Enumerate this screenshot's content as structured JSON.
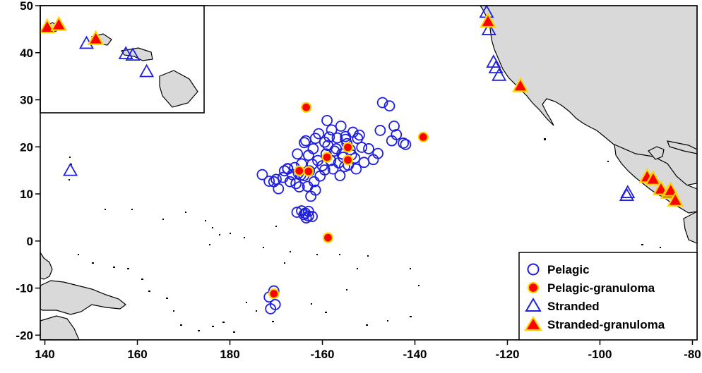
{
  "chart_data": {
    "type": "scatter",
    "x_axis": {
      "min": 139,
      "max": 281,
      "ticks": [
        140,
        160,
        180,
        200,
        220,
        240,
        260,
        280
      ],
      "tick_labels": [
        "140",
        "160",
        "180",
        "-160",
        "-140",
        "-120",
        "-100",
        "-80"
      ]
    },
    "y_axis": {
      "min": -21,
      "max": 50,
      "ticks": [
        50,
        40,
        30,
        20,
        10,
        0,
        -10,
        -20
      ],
      "tick_labels": [
        "50",
        "40",
        "30",
        "20",
        "10",
        "0",
        "-10",
        "-20"
      ]
    },
    "grid": false,
    "inset": "Hawaiian Islands, top-left",
    "legend_position": "bottom-right",
    "colors": {
      "land": "#d9d9d9",
      "open": "#1f1fe0",
      "filled": "#ff0000",
      "edge": "#ffd700"
    },
    "series": [
      {
        "name": "Pelagic",
        "marker": "open-circle",
        "points": [
          [
            187.0,
            14.1
          ],
          [
            188.5,
            12.7
          ],
          [
            189.5,
            12.6
          ],
          [
            190.0,
            13.1
          ],
          [
            190.5,
            11.1
          ],
          [
            191.5,
            13.5
          ],
          [
            191.8,
            14.9
          ],
          [
            192.5,
            15.3
          ],
          [
            193.0,
            12.6
          ],
          [
            193.5,
            14.1
          ],
          [
            194.0,
            15.6
          ],
          [
            194.3,
            12.2
          ],
          [
            194.6,
            18.5
          ],
          [
            194.8,
            14.4
          ],
          [
            195.0,
            11.5
          ],
          [
            195.5,
            16.4
          ],
          [
            196.0,
            13.9
          ],
          [
            196.1,
            20.9
          ],
          [
            196.4,
            21.3
          ],
          [
            196.8,
            11.6
          ],
          [
            197.0,
            18.2
          ],
          [
            197.2,
            14.9
          ],
          [
            197.8,
            16.3
          ],
          [
            198.0,
            19.6
          ],
          [
            198.2,
            12.6
          ],
          [
            198.5,
            21.8
          ],
          [
            199.0,
            17.1
          ],
          [
            199.2,
            22.8
          ],
          [
            199.5,
            13.8
          ],
          [
            200.0,
            16.0
          ],
          [
            200.5,
            15.1
          ],
          [
            200.8,
            18.5
          ],
          [
            201.0,
            25.6
          ],
          [
            201.2,
            20.3
          ],
          [
            201.5,
            22.1
          ],
          [
            201.8,
            17.1
          ],
          [
            202.0,
            23.6
          ],
          [
            202.3,
            15.3
          ],
          [
            202.6,
            19.1
          ],
          [
            203.0,
            19.6
          ],
          [
            203.2,
            21.9
          ],
          [
            203.5,
            16.6
          ],
          [
            203.8,
            13.9
          ],
          [
            204.0,
            24.4
          ],
          [
            204.2,
            18.5
          ],
          [
            204.5,
            17.8
          ],
          [
            204.8,
            15.8
          ],
          [
            205.0,
            22.2
          ],
          [
            205.3,
            20.7
          ],
          [
            205.6,
            16.1
          ],
          [
            206.0,
            19.4
          ],
          [
            206.3,
            18.3
          ],
          [
            206.6,
            23.1
          ],
          [
            207.0,
            17.6
          ],
          [
            207.3,
            15.3
          ],
          [
            207.6,
            21.8
          ],
          [
            208.0,
            22.5
          ],
          [
            208.5,
            19.9
          ],
          [
            209.0,
            16.7
          ],
          [
            210.0,
            19.6
          ],
          [
            211.0,
            17.3
          ],
          [
            212.0,
            18.6
          ],
          [
            212.5,
            23.5
          ],
          [
            213.0,
            29.4
          ],
          [
            214.5,
            28.7
          ],
          [
            215.0,
            21.3
          ],
          [
            215.5,
            24.4
          ],
          [
            216.0,
            22.6
          ],
          [
            217.5,
            20.8
          ],
          [
            218.0,
            20.5
          ],
          [
            194.5,
            6.1
          ],
          [
            195.5,
            6.4
          ],
          [
            196.0,
            5.6
          ],
          [
            196.5,
            4.9
          ],
          [
            197.0,
            6.3
          ],
          [
            197.5,
            9.5
          ],
          [
            197.0,
            5.3
          ],
          [
            196.3,
            5.9
          ],
          [
            197.8,
            5.2
          ],
          [
            198.5,
            10.8
          ],
          [
            188.5,
            -11.9
          ],
          [
            189.5,
            -10.6
          ],
          [
            188.8,
            -14.4
          ],
          [
            189.8,
            -13.5
          ],
          [
            192.5,
            15.4
          ],
          [
            200.5,
            21.0
          ],
          [
            205.0,
            21.6
          ],
          [
            195.3,
            14.0
          ]
        ]
      },
      {
        "name": "Pelagic-granuloma",
        "marker": "filled-circle",
        "points": [
          [
            196.5,
            28.4
          ],
          [
            195.0,
            14.9
          ],
          [
            197.0,
            14.8
          ],
          [
            201.0,
            17.8
          ],
          [
            205.5,
            19.9
          ],
          [
            205.5,
            17.2
          ],
          [
            221.8,
            22.1
          ],
          [
            201.2,
            0.7
          ],
          [
            189.5,
            -11.2
          ]
        ]
      },
      {
        "name": "Stranded",
        "marker": "open-triangle",
        "points": [
          [
            235.5,
            48.6
          ],
          [
            236.0,
            44.9
          ],
          [
            237.0,
            38.0
          ],
          [
            237.5,
            36.8
          ],
          [
            238.2,
            35.2
          ],
          [
            145.5,
            15.0
          ],
          [
            266.0,
            10.3
          ],
          [
            265.8,
            9.7
          ],
          [
            149.0,
            42.0
          ],
          [
            157.5,
            39.8
          ],
          [
            159.0,
            39.5
          ],
          [
            162.0,
            36.0
          ]
        ]
      },
      {
        "name": "Stranded-granuloma",
        "marker": "filled-triangle",
        "points": [
          [
            235.8,
            46.7
          ],
          [
            242.8,
            33.0
          ],
          [
            270.2,
            13.7
          ],
          [
            271.5,
            13.2
          ],
          [
            273.2,
            11.1
          ],
          [
            274.8,
            10.3
          ],
          [
            275.3,
            10.8
          ],
          [
            276.3,
            8.7
          ],
          [
            140.5,
            45.5
          ],
          [
            143.0,
            46.0
          ],
          [
            151.0,
            43.0
          ]
        ]
      }
    ],
    "legend": [
      "Pelagic",
      "Pelagic-granuloma",
      "Stranded",
      "Stranded-granuloma"
    ]
  }
}
